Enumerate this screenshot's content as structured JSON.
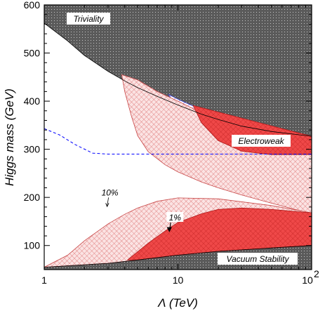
{
  "chart_data": {
    "type": "area",
    "title": "",
    "xlabel": "Λ (TeV)",
    "ylabel": "Higgs mass (GeV)",
    "xscale": "log",
    "xlim": [
      1,
      100
    ],
    "ylim": [
      50,
      600
    ],
    "grid": false,
    "xticks": [
      {
        "value": 1,
        "label": "1"
      },
      {
        "value": 10,
        "label": "10"
      },
      {
        "value": 100,
        "label": "10",
        "exponent": "2"
      }
    ],
    "yticks": [
      {
        "value": 100,
        "label": "100"
      },
      {
        "value": 200,
        "label": "200"
      },
      {
        "value": 300,
        "label": "300"
      },
      {
        "value": 400,
        "label": "400"
      },
      {
        "value": 500,
        "label": "500"
      },
      {
        "value": 600,
        "label": "600"
      }
    ],
    "regions": [
      {
        "label": "Triviality",
        "color": "#5a5a5a",
        "boundary": [
          [
            1,
            562
          ],
          [
            1.5,
            525
          ],
          [
            2,
            495
          ],
          [
            3,
            462
          ],
          [
            4,
            442
          ],
          [
            5,
            428
          ],
          [
            7,
            410
          ],
          [
            10,
            392
          ],
          [
            15,
            373
          ],
          [
            20,
            362
          ],
          [
            30,
            348
          ],
          [
            50,
            337
          ],
          [
            100,
            327
          ]
        ]
      },
      {
        "label": "Vacuum Stability",
        "color": "#5a5a5a",
        "boundary": [
          [
            1,
            55
          ],
          [
            2,
            60
          ],
          [
            3,
            63
          ],
          [
            5,
            70
          ],
          [
            10,
            80
          ],
          [
            20,
            88
          ],
          [
            50,
            95
          ],
          [
            100,
            100
          ]
        ]
      },
      {
        "label": "Electroweak",
        "color": "#3333cc",
        "upper": [
          [
            8.5,
            414
          ],
          [
            10,
            404
          ],
          [
            15,
            382
          ],
          [
            20,
            368
          ],
          [
            30,
            354
          ],
          [
            50,
            338
          ],
          [
            100,
            327
          ]
        ],
        "lower": [
          [
            8.5,
            414
          ],
          [
            10,
            380
          ],
          [
            13,
            334
          ],
          [
            16,
            307
          ],
          [
            20,
            296
          ],
          [
            30,
            289
          ],
          [
            50,
            289
          ],
          [
            100,
            289
          ]
        ]
      }
    ],
    "series": [
      {
        "name": "10%",
        "color": "#e88080",
        "upper_left": [
          [
            3.8,
            455
          ],
          [
            4,
            420
          ],
          [
            4.5,
            368
          ],
          [
            5,
            328
          ],
          [
            6,
            295
          ],
          [
            8,
            268
          ],
          [
            10,
            253
          ],
          [
            15,
            232
          ],
          [
            20,
            220
          ],
          [
            30,
            205
          ],
          [
            50,
            188
          ],
          [
            100,
            166
          ]
        ],
        "upper_right": [
          [
            3.8,
            455
          ],
          [
            5,
            444
          ],
          [
            7,
            420
          ],
          [
            10,
            400
          ],
          [
            15,
            376
          ],
          [
            20,
            363
          ],
          [
            30,
            348
          ],
          [
            50,
            337
          ],
          [
            100,
            327
          ]
        ],
        "lower": [
          [
            1,
            55
          ],
          [
            1.5,
            80
          ],
          [
            2,
            110
          ],
          [
            3,
            145
          ],
          [
            4,
            165
          ],
          [
            5,
            178
          ],
          [
            7,
            192
          ],
          [
            10,
            199
          ],
          [
            20,
            197
          ],
          [
            50,
            183
          ],
          [
            100,
            168
          ]
        ]
      },
      {
        "name": "1%",
        "color": "#e83030",
        "upper": [
          [
            13,
            391
          ],
          [
            15,
            355
          ],
          [
            20,
            318
          ],
          [
            30,
            296
          ],
          [
            50,
            289
          ],
          [
            100,
            289
          ]
        ],
        "middle": [
          [
            13,
            391
          ],
          [
            100,
            327
          ]
        ],
        "lower_band": [
          [
            4.2,
            70
          ],
          [
            6,
            105
          ],
          [
            8,
            130
          ],
          [
            10,
            148
          ],
          [
            15,
            166
          ],
          [
            20,
            175
          ],
          [
            30,
            178
          ],
          [
            50,
            175
          ],
          [
            100,
            168
          ]
        ]
      },
      {
        "name": "dashed",
        "color": "#0000ff",
        "style": "dashed",
        "points": [
          [
            1,
            343
          ],
          [
            1.3,
            330
          ],
          [
            1.7,
            310
          ],
          [
            2.3,
            292
          ],
          [
            3,
            290
          ],
          [
            5,
            290
          ],
          [
            10,
            290
          ],
          [
            30,
            290
          ],
          [
            100,
            290
          ]
        ]
      }
    ],
    "annotations": [
      {
        "text": "Triviality",
        "pos": "top-left"
      },
      {
        "text": "Electroweak",
        "pos": "right"
      },
      {
        "text": "Vacuum Stability",
        "pos": "bottom-right"
      },
      {
        "text": "10%",
        "x": 3.1,
        "y": 210
      },
      {
        "text": "1%",
        "x": 9.5,
        "y": 155
      }
    ]
  }
}
